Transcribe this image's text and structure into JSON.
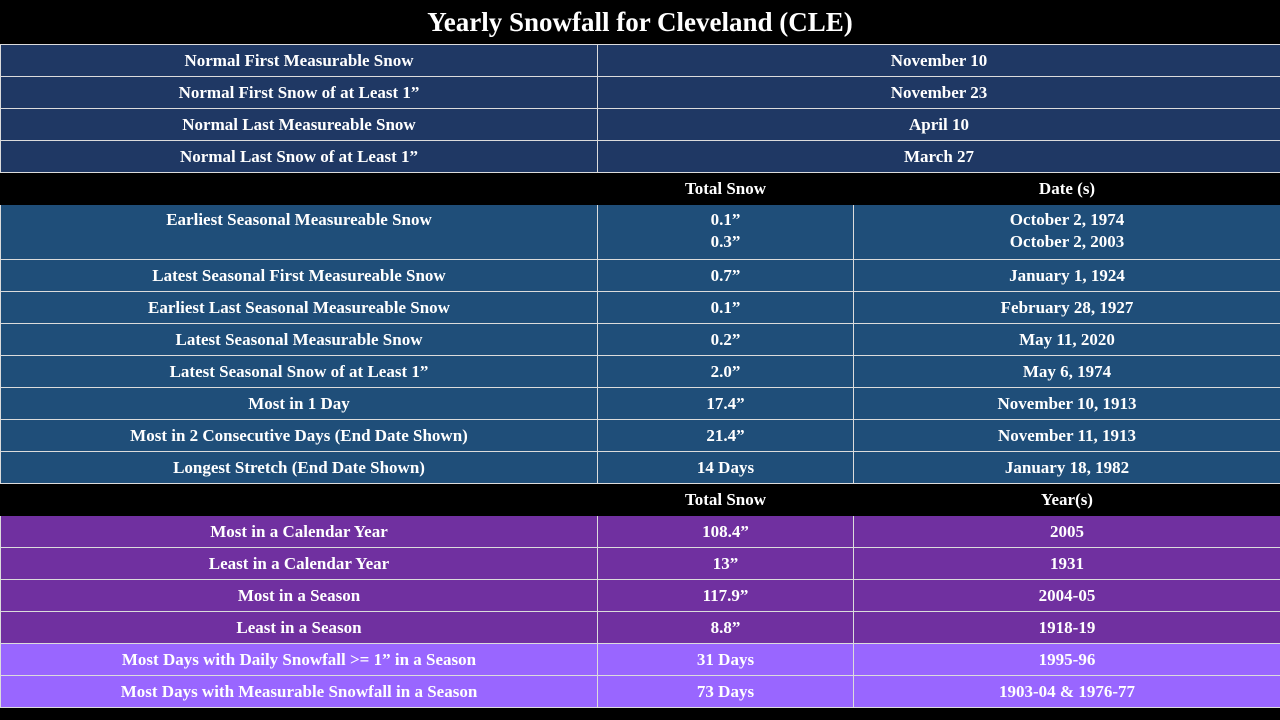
{
  "title": "Yearly Snowfall for Cleveland (CLE)",
  "normals": [
    {
      "label": "Normal First Measurable Snow",
      "value": "November 10"
    },
    {
      "label": "Normal First Snow of at Least 1”",
      "value": "November 23"
    },
    {
      "label": "Normal Last Measureable Snow",
      "value": "April 10"
    },
    {
      "label": "Normal Last Snow of at Least 1”",
      "value": "March 27"
    }
  ],
  "records_header": {
    "col2": "Total Snow",
    "col3": "Date (s)"
  },
  "records": [
    {
      "label": "Earliest Seasonal Measureable Snow",
      "total": [
        "0.1”",
        "0.3”"
      ],
      "date": [
        "October 2, 1974",
        "October 2, 2003"
      ]
    },
    {
      "label": "Latest Seasonal First Measureable Snow",
      "total": "0.7”",
      "date": "January 1, 1924"
    },
    {
      "label": "Earliest Last Seasonal Measureable Snow",
      "total": "0.1”",
      "date": "February 28, 1927"
    },
    {
      "label": "Latest Seasonal Measurable Snow",
      "total": "0.2”",
      "date": "May 11, 2020"
    },
    {
      "label": "Latest Seasonal Snow of at Least 1”",
      "total": "2.0”",
      "date": "May 6, 1974"
    },
    {
      "label": "Most in 1 Day",
      "total": "17.4”",
      "date": "November 10, 1913"
    },
    {
      "label": "Most in 2 Consecutive Days (End Date Shown)",
      "total": "21.4”",
      "date": "November 11, 1913"
    },
    {
      "label": "Longest Stretch (End Date Shown)",
      "total": "14 Days",
      "date": "January 18, 1982"
    }
  ],
  "yearly_header": {
    "col2": "Total Snow",
    "col3": "Year(s)"
  },
  "yearly": [
    {
      "label": "Most in a Calendar Year",
      "total": "108.4”",
      "year": "2005"
    },
    {
      "label": "Least in a Calendar Year",
      "total": "13”",
      "year": "1931"
    },
    {
      "label": "Most in a Season",
      "total": "117.9”",
      "year": "2004-05"
    },
    {
      "label": "Least in a Season",
      "total": "8.8”",
      "year": "1918-19"
    },
    {
      "label": "Most Days with Daily Snowfall >= 1” in a Season",
      "total": "31 Days",
      "year": "1995-96"
    },
    {
      "label": "Most Days with Measurable Snowfall in a Season",
      "total": "73 Days",
      "year": "1903-04 & 1976-77"
    }
  ],
  "colors": {
    "normal_bg": "#1f3864",
    "record_bg": "#1f4e79",
    "purple_bg": "#7030a0",
    "lilac_bg": "#9966ff",
    "header_bg": "#000000"
  }
}
